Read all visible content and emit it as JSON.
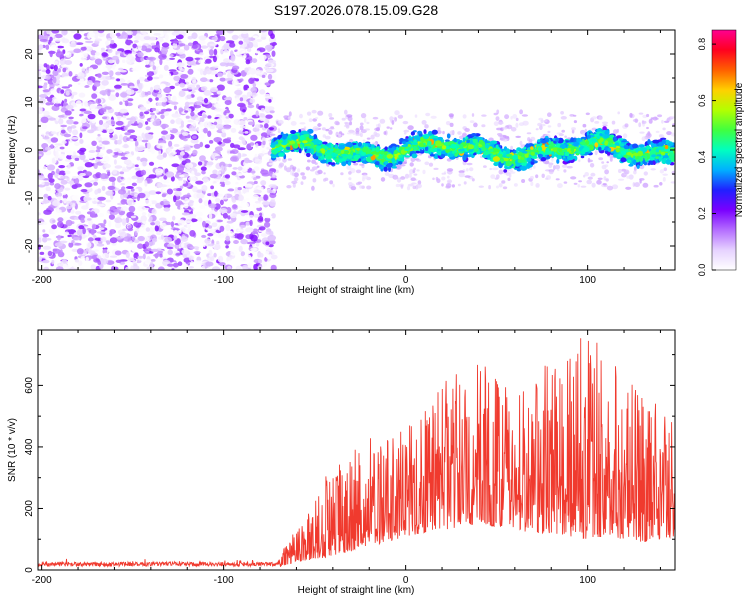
{
  "title": "S197.2026.078.15.09.G28",
  "chart_data": [
    {
      "type": "heatmap",
      "title": "S197.2026.078.15.09.G28",
      "xlabel": "Height of straight line (km)",
      "ylabel": "Frequency (Hz)",
      "xlim": [
        -202,
        148
      ],
      "ylim": [
        -25,
        25
      ],
      "xticks": [
        -200,
        -100,
        0,
        100
      ],
      "yticks": [
        -20,
        -10,
        0,
        10,
        20
      ],
      "noise_region_x": [
        -202,
        -75
      ],
      "signal_band_center_hz": 0,
      "signal_band_halfwidth_hz": 3,
      "colorbar": {
        "label": "Normalized spectral amplitude",
        "range": [
          0.0,
          0.85
        ],
        "ticks": [
          0.0,
          0.2,
          0.4,
          0.6,
          0.8
        ],
        "stops": [
          "#ffffff",
          "#e6d2ff",
          "#b46dff",
          "#7a00ff",
          "#2020ff",
          "#00b0ff",
          "#00ffc0",
          "#40ff40",
          "#b4ff00",
          "#ffd000",
          "#ff6000",
          "#ff0020",
          "#ff0090"
        ]
      }
    },
    {
      "type": "line",
      "xlabel": "Height of straight line (km)",
      "ylabel": "SNR (10 * v/v)",
      "xlim": [
        -202,
        148
      ],
      "ylim": [
        0,
        780
      ],
      "xticks": [
        -200,
        -100,
        0,
        100
      ],
      "yticks": [
        0,
        200,
        400,
        600
      ],
      "color": "#f03a2e",
      "envelope": {
        "x": [
          -202,
          -70,
          -64,
          -55,
          -45,
          -30,
          -20,
          -10,
          0,
          10,
          20,
          30,
          40,
          50,
          60,
          70,
          80,
          90,
          100,
          110,
          120,
          130,
          140,
          148
        ],
        "baseline_min": [
          8,
          8,
          20,
          30,
          40,
          60,
          80,
          90,
          110,
          120,
          130,
          140,
          150,
          140,
          130,
          120,
          120,
          110,
          100,
          110,
          100,
          90,
          100,
          110
        ],
        "peak_max": [
          40,
          40,
          100,
          180,
          300,
          380,
          430,
          440,
          460,
          520,
          640,
          660,
          680,
          640,
          580,
          620,
          700,
          760,
          780,
          700,
          640,
          560,
          540,
          560
        ]
      }
    }
  ]
}
